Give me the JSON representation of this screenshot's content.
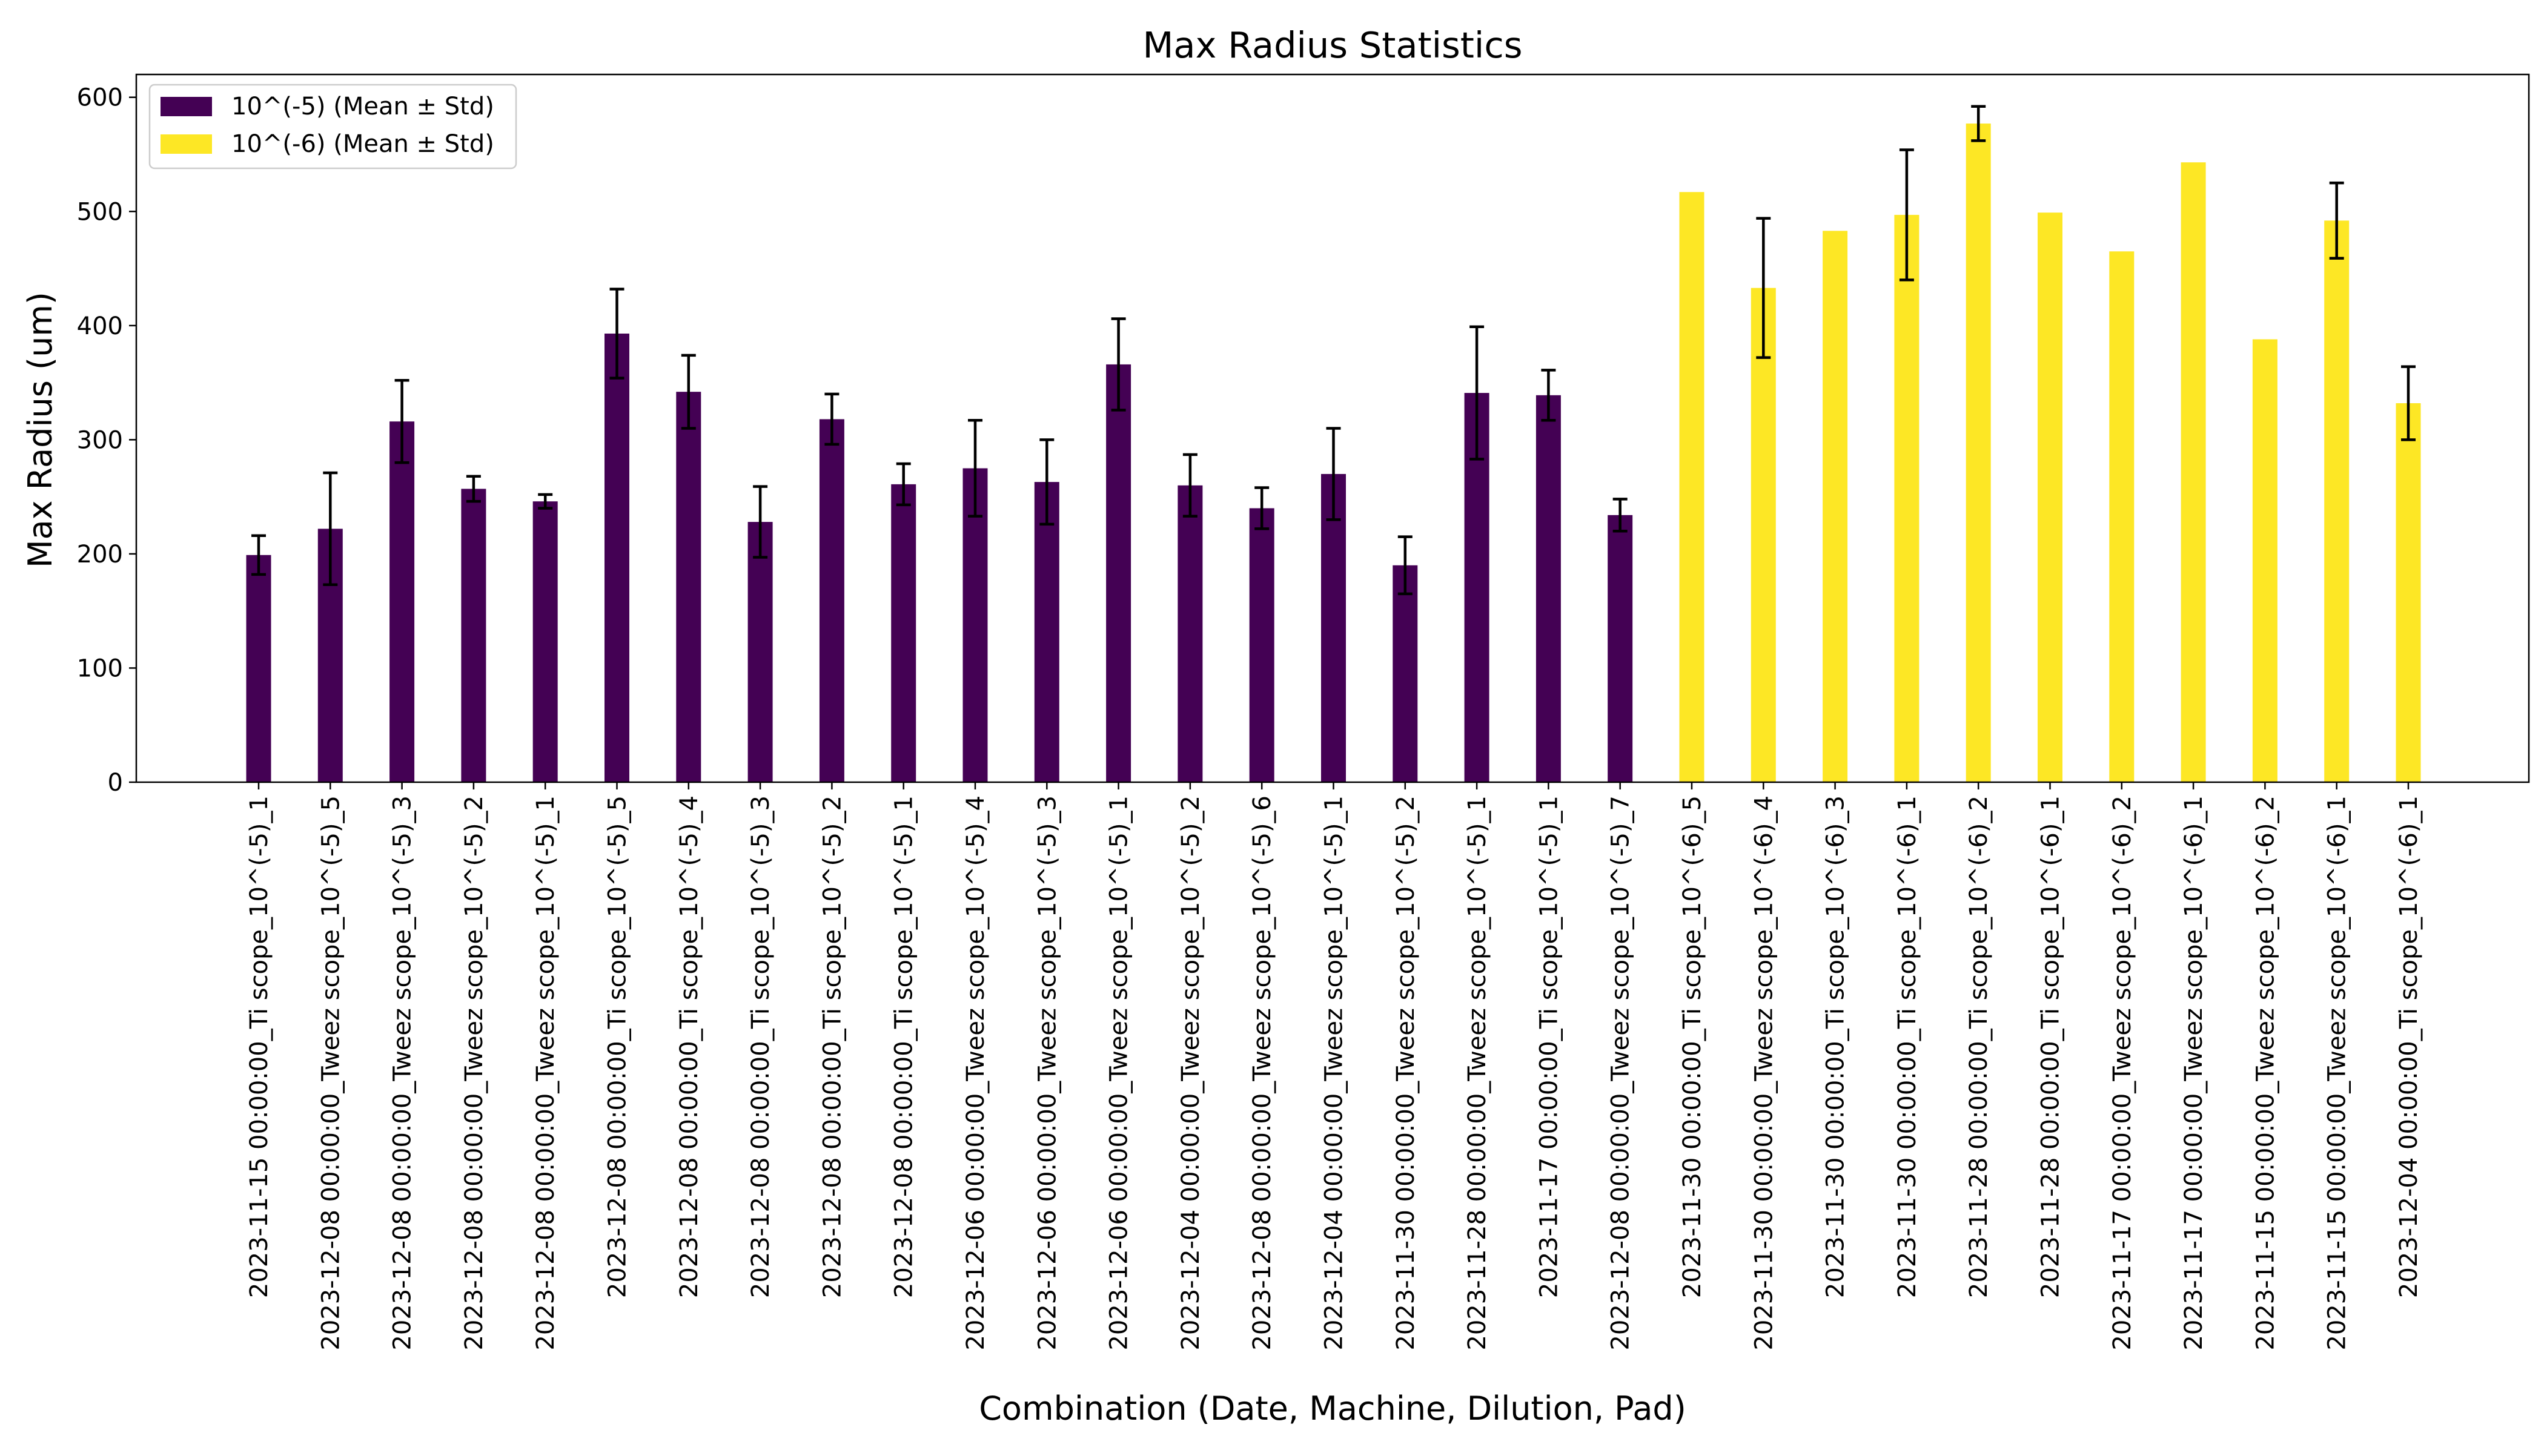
{
  "chart_data": {
    "type": "bar",
    "title": "Max Radius Statistics",
    "xlabel": "Combination (Date, Machine, Dilution, Pad)",
    "ylabel": "Max Radius (um)",
    "ylim": [
      0,
      620
    ],
    "yticks": [
      0,
      100,
      200,
      300,
      400,
      500,
      600
    ],
    "grid": false,
    "legend_position": "top-left",
    "categories": [
      "2023-11-15 00:00:00_Ti scope_10^(-5)_1",
      "2023-12-08 00:00:00_Tweez scope_10^(-5)_5",
      "2023-12-08 00:00:00_Tweez scope_10^(-5)_3",
      "2023-12-08 00:00:00_Tweez scope_10^(-5)_2",
      "2023-12-08 00:00:00_Tweez scope_10^(-5)_1",
      "2023-12-08 00:00:00_Ti scope_10^(-5)_5",
      "2023-12-08 00:00:00_Ti scope_10^(-5)_4",
      "2023-12-08 00:00:00_Ti scope_10^(-5)_3",
      "2023-12-08 00:00:00_Ti scope_10^(-5)_2",
      "2023-12-08 00:00:00_Ti scope_10^(-5)_1",
      "2023-12-06 00:00:00_Tweez scope_10^(-5)_4",
      "2023-12-06 00:00:00_Tweez scope_10^(-5)_3",
      "2023-12-06 00:00:00_Tweez scope_10^(-5)_1",
      "2023-12-04 00:00:00_Tweez scope_10^(-5)_2",
      "2023-12-08 00:00:00_Tweez scope_10^(-5)_6",
      "2023-12-04 00:00:00_Tweez scope_10^(-5)_1",
      "2023-11-30 00:00:00_Tweez scope_10^(-5)_2",
      "2023-11-28 00:00:00_Tweez scope_10^(-5)_1",
      "2023-11-17 00:00:00_Ti scope_10^(-5)_1",
      "2023-12-08 00:00:00_Tweez scope_10^(-5)_7",
      "2023-11-30 00:00:00_Ti scope_10^(-6)_5",
      "2023-11-30 00:00:00_Tweez scope_10^(-6)_4",
      "2023-11-30 00:00:00_Ti scope_10^(-6)_3",
      "2023-11-30 00:00:00_Ti scope_10^(-6)_1",
      "2023-11-28 00:00:00_Ti scope_10^(-6)_2",
      "2023-11-28 00:00:00_Ti scope_10^(-6)_1",
      "2023-11-17 00:00:00_Tweez scope_10^(-6)_2",
      "2023-11-17 00:00:00_Tweez scope_10^(-6)_1",
      "2023-11-15 00:00:00_Tweez scope_10^(-6)_2",
      "2023-11-15 00:00:00_Tweez scope_10^(-6)_1",
      "2023-12-04 00:00:00_Ti scope_10^(-6)_1"
    ],
    "series": [
      {
        "name": "10^(-5) (Mean ± Std)",
        "color": "#440154",
        "values": [
          199,
          222,
          316,
          257,
          246,
          393,
          342,
          228,
          318,
          261,
          275,
          263,
          366,
          260,
          240,
          270,
          190,
          341,
          339,
          234,
          null,
          null,
          null,
          null,
          null,
          null,
          null,
          null,
          null,
          null,
          null
        ],
        "std": [
          17,
          49,
          36,
          11,
          6,
          39,
          32,
          31,
          22,
          18,
          42,
          37,
          40,
          27,
          18,
          40,
          25,
          58,
          22,
          14,
          null,
          null,
          null,
          null,
          null,
          null,
          null,
          null,
          null,
          null,
          null
        ]
      },
      {
        "name": "10^(-6) (Mean ± Std)",
        "color": "#FDE725",
        "values": [
          null,
          null,
          null,
          null,
          null,
          null,
          null,
          null,
          null,
          null,
          null,
          null,
          null,
          null,
          null,
          null,
          null,
          null,
          null,
          null,
          517,
          433,
          483,
          497,
          577,
          499,
          465,
          543,
          388,
          492,
          332
        ],
        "std": [
          null,
          null,
          null,
          null,
          null,
          null,
          null,
          null,
          null,
          null,
          null,
          null,
          null,
          null,
          null,
          null,
          null,
          null,
          null,
          null,
          0,
          61,
          0,
          57,
          15,
          0,
          0,
          0,
          0,
          33,
          32
        ]
      }
    ]
  }
}
